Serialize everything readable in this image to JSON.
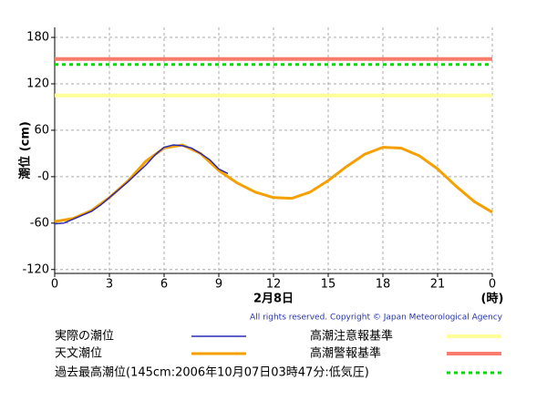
{
  "chart_data": {
    "type": "line",
    "y_label": "潮位 (cm)",
    "x_label": "2月8日",
    "x_unit_label": "(時)",
    "copyright": "All rights reserved. Copyright © Japan Meteorological Agency",
    "xlim": [
      0,
      24
    ],
    "xticks": [
      0,
      3,
      6,
      9,
      12,
      15,
      18,
      21,
      24
    ],
    "xtick_labels": [
      {
        "value": 24,
        "label": "0"
      }
    ],
    "ylim": [
      -125,
      193
    ],
    "yticks": [
      180,
      120,
      60,
      {
        "value": 0,
        "label": "-0"
      },
      -60,
      -120
    ],
    "grid": true,
    "series": [
      {
        "name": "実際の潮位",
        "color": "#2a2ab8",
        "x": [
          0,
          0.5,
          1,
          1.5,
          2,
          2.5,
          3,
          3.5,
          4,
          4.5,
          5,
          5.5,
          6,
          6.5,
          7,
          7.5,
          8,
          8.5,
          9,
          9.5
        ],
        "values": [
          -61,
          -60,
          -55,
          -50,
          -45,
          -37,
          -27,
          -17,
          -7,
          4,
          15,
          28,
          38,
          41,
          40,
          37,
          30,
          22,
          10,
          4
        ]
      },
      {
        "name": "天文潮位",
        "color": "#f5a000",
        "x": [
          0,
          1,
          2,
          3,
          4,
          5,
          6,
          7,
          8,
          9,
          10,
          11,
          12,
          13,
          14,
          15,
          16,
          17,
          18,
          19,
          20,
          21,
          22,
          23,
          24
        ],
        "values": [
          -58,
          -54,
          -44,
          -27,
          -6,
          20,
          37,
          41,
          30,
          8,
          -8,
          -20,
          -27,
          -28,
          -20,
          -5,
          13,
          29,
          38,
          37,
          27,
          10,
          -12,
          -32,
          -46
        ]
      }
    ],
    "reference_lines": [
      {
        "name": "高潮注意報基準",
        "value": 105,
        "color": "#ffff99",
        "dashed": false
      },
      {
        "name": "高潮警報基準",
        "value": 152,
        "color": "#f87c6c",
        "dashed": false
      },
      {
        "name": "過去最高潮位(145cm:2006年10月07日03時47分:低気圧)",
        "value": 145,
        "color": "#00dd00",
        "dashed": true
      }
    ]
  }
}
